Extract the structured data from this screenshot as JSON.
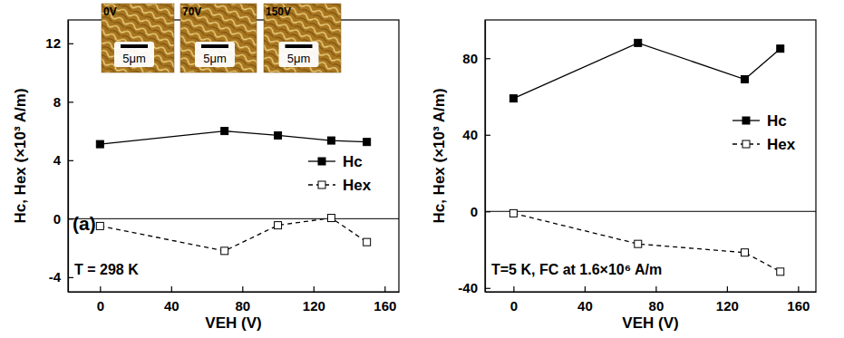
{
  "chart_data": [
    {
      "type": "line",
      "annotations": [
        "(a)",
        "T = 298 K"
      ],
      "x_label": "VEH (V)",
      "y_label": "Hc, Hex (×10³ A/m)",
      "xlim": [
        -18,
        168
      ],
      "xticks": [
        0,
        40,
        80,
        120,
        160
      ],
      "ylim": [
        -5,
        13.6
      ],
      "yticks": [
        -4,
        0,
        4,
        8,
        12
      ],
      "legend": "right",
      "series": [
        {
          "name": "Hc",
          "color": "#000000",
          "marker": "filled-square",
          "line_style": "solid",
          "x": [
            0,
            70,
            100,
            130,
            150
          ],
          "values": [
            5.1,
            6.0,
            5.7,
            5.35,
            5.25
          ]
        },
        {
          "name": "Hex",
          "color": "#000000",
          "marker": "open-square",
          "line_style": "dashed",
          "x": [
            0,
            70,
            100,
            130,
            150
          ],
          "values": [
            -0.5,
            -2.2,
            -0.45,
            0.05,
            -1.6
          ]
        }
      ],
      "insets": [
        {
          "label": "0V",
          "scale_bar": "5μm"
        },
        {
          "label": "70V",
          "scale_bar": "5μm"
        },
        {
          "label": "150V",
          "scale_bar": "5μm"
        }
      ]
    },
    {
      "type": "line",
      "annotations": [
        "T=5 K, FC at 1.6×10⁶ A/m"
      ],
      "x_label": "VEH (V)",
      "y_label": "Hc, Hex (×10³ A/m)",
      "xlim": [
        -16,
        170
      ],
      "xticks": [
        0,
        40,
        80,
        120,
        160
      ],
      "ylim": [
        -42,
        100
      ],
      "yticks": [
        -40,
        0,
        40,
        80
      ],
      "legend": "right",
      "series": [
        {
          "name": "Hc",
          "color": "#000000",
          "marker": "filled-square",
          "line_style": "solid",
          "x": [
            0,
            70,
            130,
            150
          ],
          "values": [
            59,
            88,
            69,
            85
          ]
        },
        {
          "name": "Hex",
          "color": "#000000",
          "marker": "open-square",
          "line_style": "dashed",
          "x": [
            0,
            70,
            130,
            150
          ],
          "values": [
            -1,
            -17,
            -21.5,
            -31.5
          ]
        }
      ]
    }
  ]
}
